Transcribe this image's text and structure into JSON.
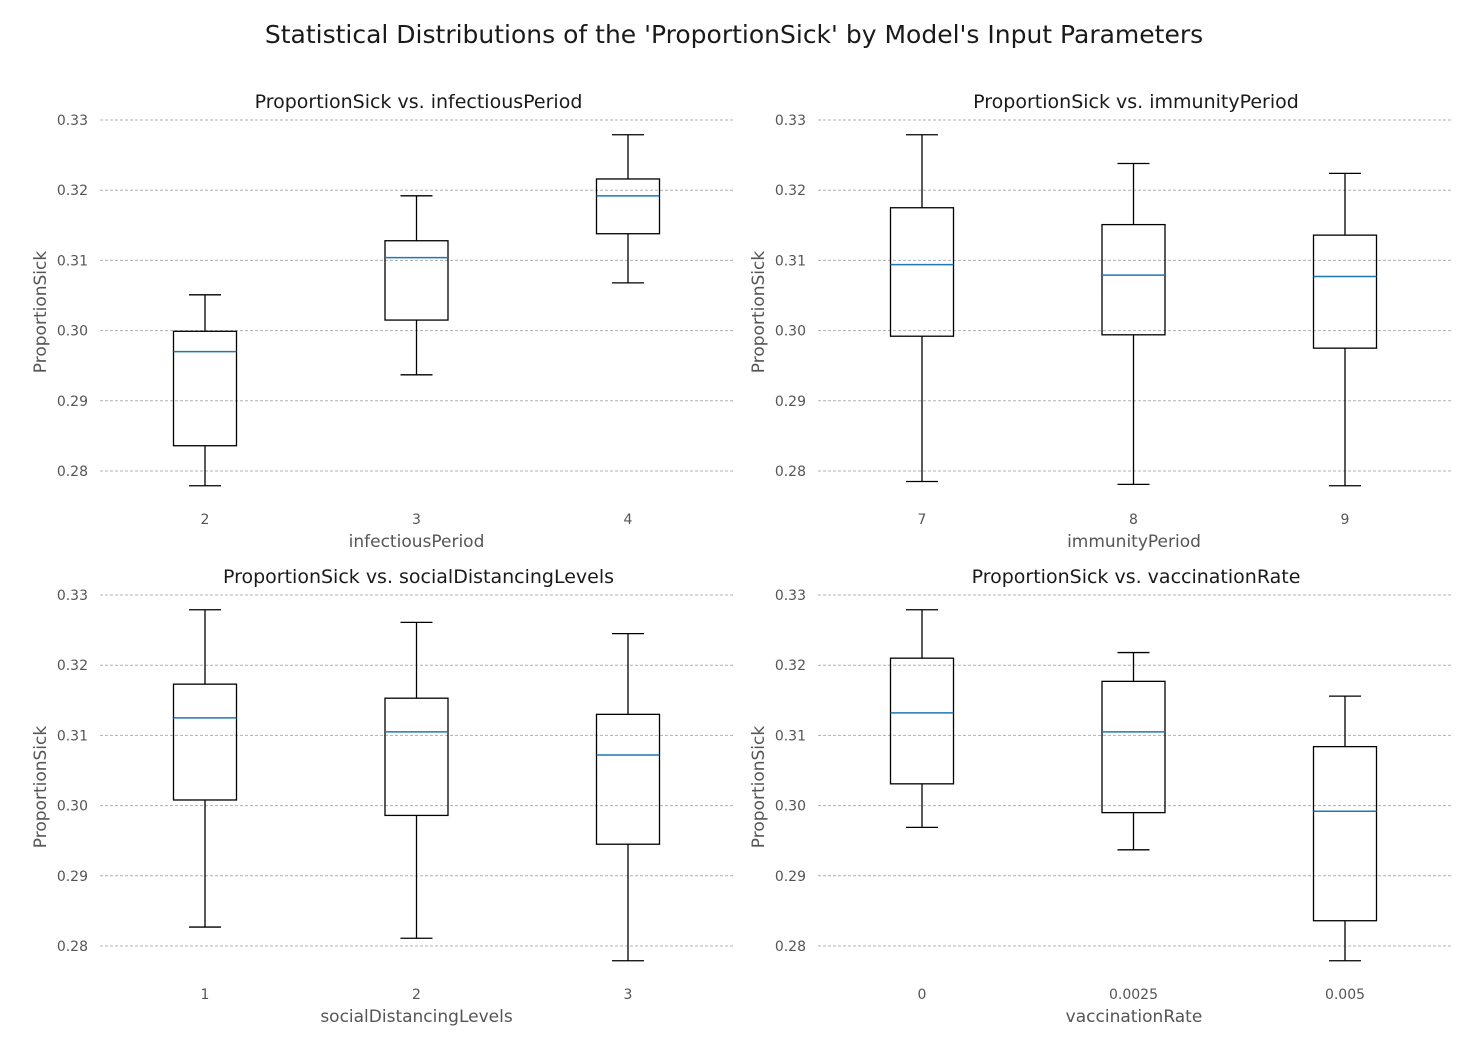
{
  "figure": {
    "title": "Statistical Distributions of the 'ProportionSick' by Model's Input Parameters"
  },
  "chart_data": [
    {
      "type": "box",
      "title": "ProportionSick vs. infectiousPeriod",
      "xlabel": "infectiousPeriod",
      "ylabel": "ProportionSick",
      "ylim": [
        0.2775,
        0.33
      ],
      "yticks": [
        "0.28",
        "0.29",
        "0.30",
        "0.31",
        "0.32",
        "0.33"
      ],
      "grid": "horizontal dashed",
      "categories": [
        "2",
        "3",
        "4"
      ],
      "boxes": [
        {
          "whislo": 0.2779,
          "q1": 0.2836,
          "med": 0.297,
          "q3": 0.2999,
          "whishi": 0.3051
        },
        {
          "whislo": 0.2937,
          "q1": 0.3015,
          "med": 0.3104,
          "q3": 0.3128,
          "whishi": 0.3192
        },
        {
          "whislo": 0.3068,
          "q1": 0.3138,
          "med": 0.3192,
          "q3": 0.3216,
          "whishi": 0.3279
        }
      ]
    },
    {
      "type": "box",
      "title": "ProportionSick vs. immunityPeriod",
      "xlabel": "immunityPeriod",
      "ylabel": "ProportionSick",
      "ylim": [
        0.2775,
        0.33
      ],
      "yticks": [
        "0.28",
        "0.29",
        "0.30",
        "0.31",
        "0.32",
        "0.33"
      ],
      "grid": "horizontal dashed",
      "categories": [
        "7",
        "8",
        "9"
      ],
      "boxes": [
        {
          "whislo": 0.2785,
          "q1": 0.2992,
          "med": 0.3094,
          "q3": 0.3175,
          "whishi": 0.3279
        },
        {
          "whislo": 0.2781,
          "q1": 0.2994,
          "med": 0.3079,
          "q3": 0.3151,
          "whishi": 0.3238
        },
        {
          "whislo": 0.2779,
          "q1": 0.2975,
          "med": 0.3077,
          "q3": 0.3136,
          "whishi": 0.3224
        }
      ]
    },
    {
      "type": "box",
      "title": "ProportionSick vs. socialDistancingLevels",
      "xlabel": "socialDistancingLevels",
      "ylabel": "ProportionSick",
      "ylim": [
        0.2775,
        0.33
      ],
      "yticks": [
        "0.28",
        "0.29",
        "0.30",
        "0.31",
        "0.32",
        "0.33"
      ],
      "grid": "horizontal dashed",
      "categories": [
        "1",
        "2",
        "3"
      ],
      "boxes": [
        {
          "whislo": 0.2827,
          "q1": 0.3008,
          "med": 0.3125,
          "q3": 0.3173,
          "whishi": 0.3279
        },
        {
          "whislo": 0.2811,
          "q1": 0.2986,
          "med": 0.3105,
          "q3": 0.3153,
          "whishi": 0.3261
        },
        {
          "whislo": 0.2779,
          "q1": 0.2945,
          "med": 0.3072,
          "q3": 0.313,
          "whishi": 0.3245
        }
      ]
    },
    {
      "type": "box",
      "title": "ProportionSick vs. vaccinationRate",
      "xlabel": "vaccinationRate",
      "ylabel": "ProportionSick",
      "ylim": [
        0.2775,
        0.33
      ],
      "yticks": [
        "0.28",
        "0.29",
        "0.30",
        "0.31",
        "0.32",
        "0.33"
      ],
      "grid": "horizontal dashed",
      "categories": [
        "0",
        "0.0025",
        "0.005"
      ],
      "boxes": [
        {
          "whislo": 0.2969,
          "q1": 0.3031,
          "med": 0.3132,
          "q3": 0.321,
          "whishi": 0.3279
        },
        {
          "whislo": 0.2937,
          "q1": 0.299,
          "med": 0.3105,
          "q3": 0.3177,
          "whishi": 0.3218
        },
        {
          "whislo": 0.2779,
          "q1": 0.2836,
          "med": 0.2992,
          "q3": 0.3084,
          "whishi": 0.3156
        }
      ]
    }
  ],
  "colors": {
    "box": "#000000",
    "median": "#1f77b4",
    "grid": "#b0b0b0",
    "text": "#555555"
  }
}
